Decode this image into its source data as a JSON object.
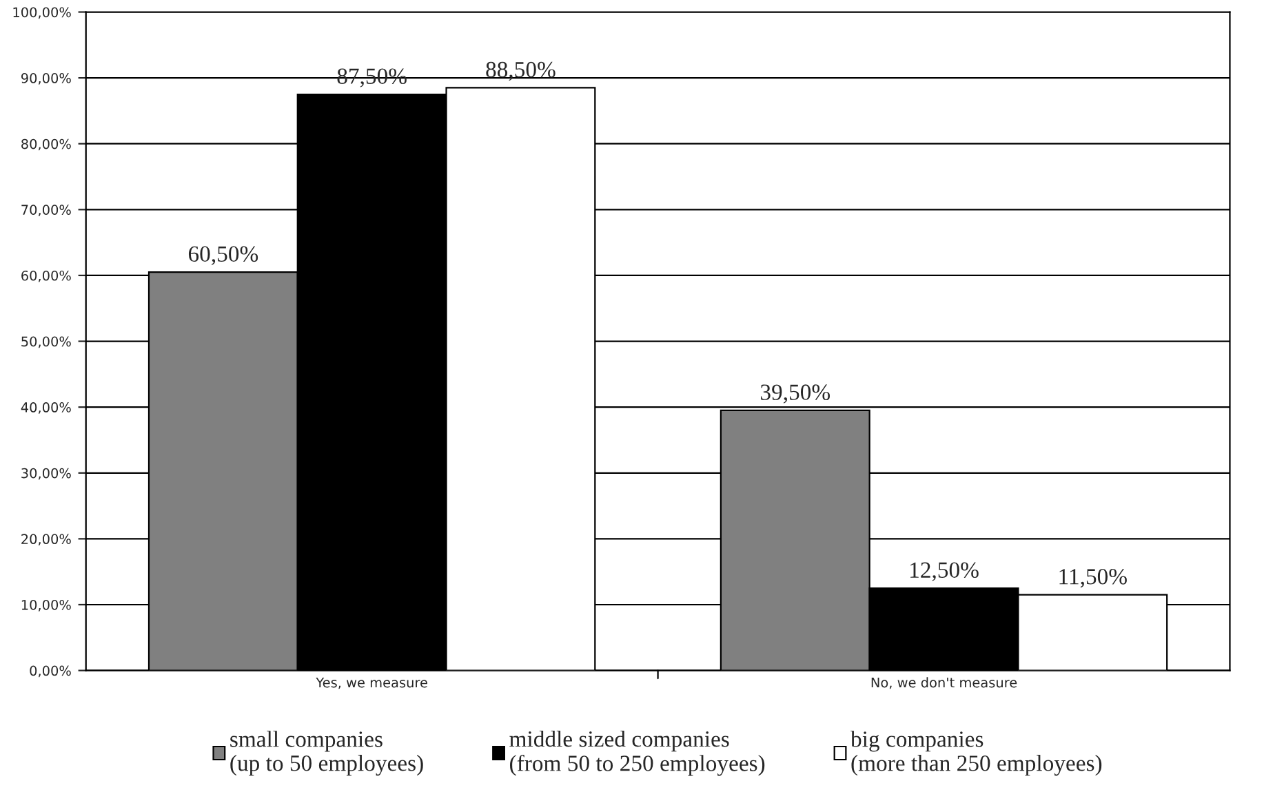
{
  "chart_data": {
    "type": "bar",
    "categories": [
      "Yes, we measure",
      "No, we don't measure"
    ],
    "series": [
      {
        "name": "small companies\n(up to 50 employees)",
        "color": "#808080",
        "values": [
          60.5,
          39.5
        ],
        "value_labels": [
          "60,50%",
          "39,50%"
        ]
      },
      {
        "name": "middle sized companies\n(from 50 to 250 employees)",
        "color": "#000000",
        "values": [
          87.5,
          12.5
        ],
        "value_labels": [
          "87,50%",
          "12,50%"
        ]
      },
      {
        "name": "big companies\n(more than 250 employees)",
        "color": "#ffffff",
        "values": [
          88.5,
          11.5
        ],
        "value_labels": [
          "88,50%",
          "11,50%"
        ]
      }
    ],
    "ylim": [
      0,
      100
    ],
    "yticks": [
      {
        "value": 0,
        "label": "0,00%"
      },
      {
        "value": 10,
        "label": "10,00%"
      },
      {
        "value": 20,
        "label": "20,00%"
      },
      {
        "value": 30,
        "label": "30,00%"
      },
      {
        "value": 40,
        "label": "40,00%"
      },
      {
        "value": 50,
        "label": "50,00%"
      },
      {
        "value": 60,
        "label": "60,00%"
      },
      {
        "value": 70,
        "label": "70,00%"
      },
      {
        "value": 80,
        "label": "80,00%"
      },
      {
        "value": 90,
        "label": "90,00%"
      },
      {
        "value": 100,
        "label": "100,00%"
      }
    ],
    "grid": "y",
    "legend": "bottom"
  }
}
